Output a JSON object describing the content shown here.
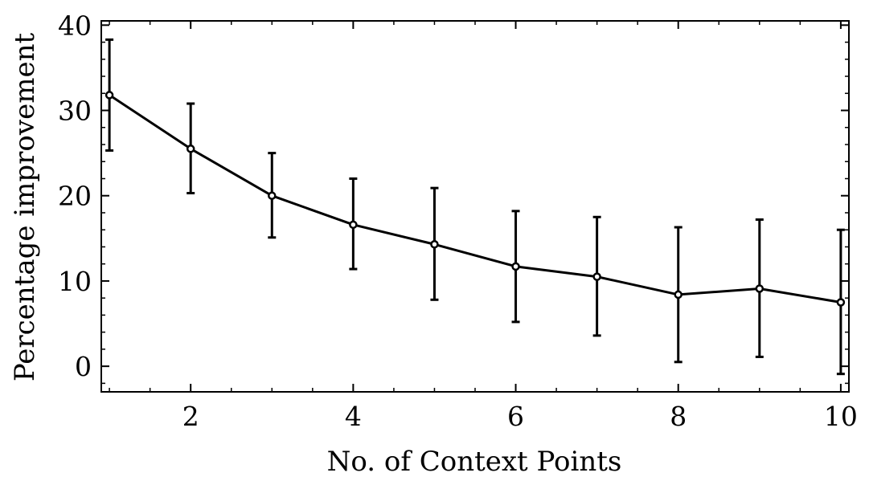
{
  "chart_data": {
    "type": "line",
    "title": "",
    "xlabel": "No. of Context Points",
    "ylabel": "Percentage improvement",
    "xlim": [
      0.9,
      10.1
    ],
    "ylim": [
      -3,
      40.5
    ],
    "xticks": [
      2,
      4,
      6,
      8,
      10
    ],
    "xtick_labels": [
      "2",
      "4",
      "6",
      "8",
      "10"
    ],
    "yticks": [
      0,
      10,
      20,
      30,
      40
    ],
    "ytick_labels": [
      "0",
      "10",
      "20",
      "30",
      "40"
    ],
    "grid": false,
    "legend": "none",
    "series": [
      {
        "x": [
          1,
          2,
          3,
          4,
          5,
          6,
          7,
          8,
          9,
          10
        ],
        "y": [
          31.8,
          25.5,
          20.0,
          16.6,
          14.3,
          11.7,
          10.5,
          8.4,
          9.1,
          7.5
        ],
        "err_lower": [
          6.5,
          5.2,
          4.9,
          5.2,
          6.5,
          6.5,
          6.9,
          7.9,
          8.0,
          8.4
        ],
        "err_upper": [
          6.5,
          5.3,
          5.0,
          5.4,
          6.6,
          6.5,
          7.0,
          7.9,
          8.1,
          8.5
        ],
        "color": "#000000"
      }
    ]
  }
}
